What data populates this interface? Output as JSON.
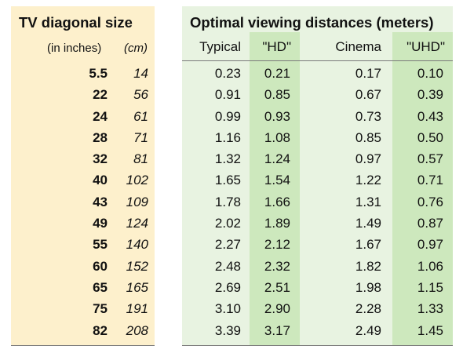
{
  "left_panel": {
    "title": "TV diagonal size",
    "inches_header": "(in inches)",
    "cm_header": "(cm)"
  },
  "right_panel": {
    "title": "Optimal viewing distances (meters)",
    "columns": [
      "Typical",
      "\"HD\"",
      "Cinema",
      "\"UHD\""
    ]
  },
  "rows": [
    {
      "inches": "5.5",
      "cm": "14",
      "typical": "0.23",
      "hd": "0.21",
      "cinema": "0.17",
      "uhd": "0.10"
    },
    {
      "inches": "22",
      "cm": "56",
      "typical": "0.91",
      "hd": "0.85",
      "cinema": "0.67",
      "uhd": "0.39"
    },
    {
      "inches": "24",
      "cm": "61",
      "typical": "0.99",
      "hd": "0.93",
      "cinema": "0.73",
      "uhd": "0.43"
    },
    {
      "inches": "28",
      "cm": "71",
      "typical": "1.16",
      "hd": "1.08",
      "cinema": "0.85",
      "uhd": "0.50"
    },
    {
      "inches": "32",
      "cm": "81",
      "typical": "1.32",
      "hd": "1.24",
      "cinema": "0.97",
      "uhd": "0.57"
    },
    {
      "inches": "40",
      "cm": "102",
      "typical": "1.65",
      "hd": "1.54",
      "cinema": "1.22",
      "uhd": "0.71"
    },
    {
      "inches": "43",
      "cm": "109",
      "typical": "1.78",
      "hd": "1.66",
      "cinema": "1.31",
      "uhd": "0.76"
    },
    {
      "inches": "49",
      "cm": "124",
      "typical": "2.02",
      "hd": "1.89",
      "cinema": "1.49",
      "uhd": "0.87"
    },
    {
      "inches": "55",
      "cm": "140",
      "typical": "2.27",
      "hd": "2.12",
      "cinema": "1.67",
      "uhd": "0.97"
    },
    {
      "inches": "60",
      "cm": "152",
      "typical": "2.48",
      "hd": "2.32",
      "cinema": "1.82",
      "uhd": "1.06"
    },
    {
      "inches": "65",
      "cm": "165",
      "typical": "2.69",
      "hd": "2.51",
      "cinema": "1.98",
      "uhd": "1.15"
    },
    {
      "inches": "75",
      "cm": "191",
      "typical": "3.10",
      "hd": "2.90",
      "cinema": "2.28",
      "uhd": "1.33"
    },
    {
      "inches": "82",
      "cm": "208",
      "typical": "3.39",
      "hd": "3.17",
      "cinema": "2.49",
      "uhd": "1.45"
    }
  ],
  "colors": {
    "left_background": "#fdf0cc",
    "right_background": "#e8f3e1",
    "highlight_column": "#cde8bd",
    "rule": "#7a7a7a"
  }
}
